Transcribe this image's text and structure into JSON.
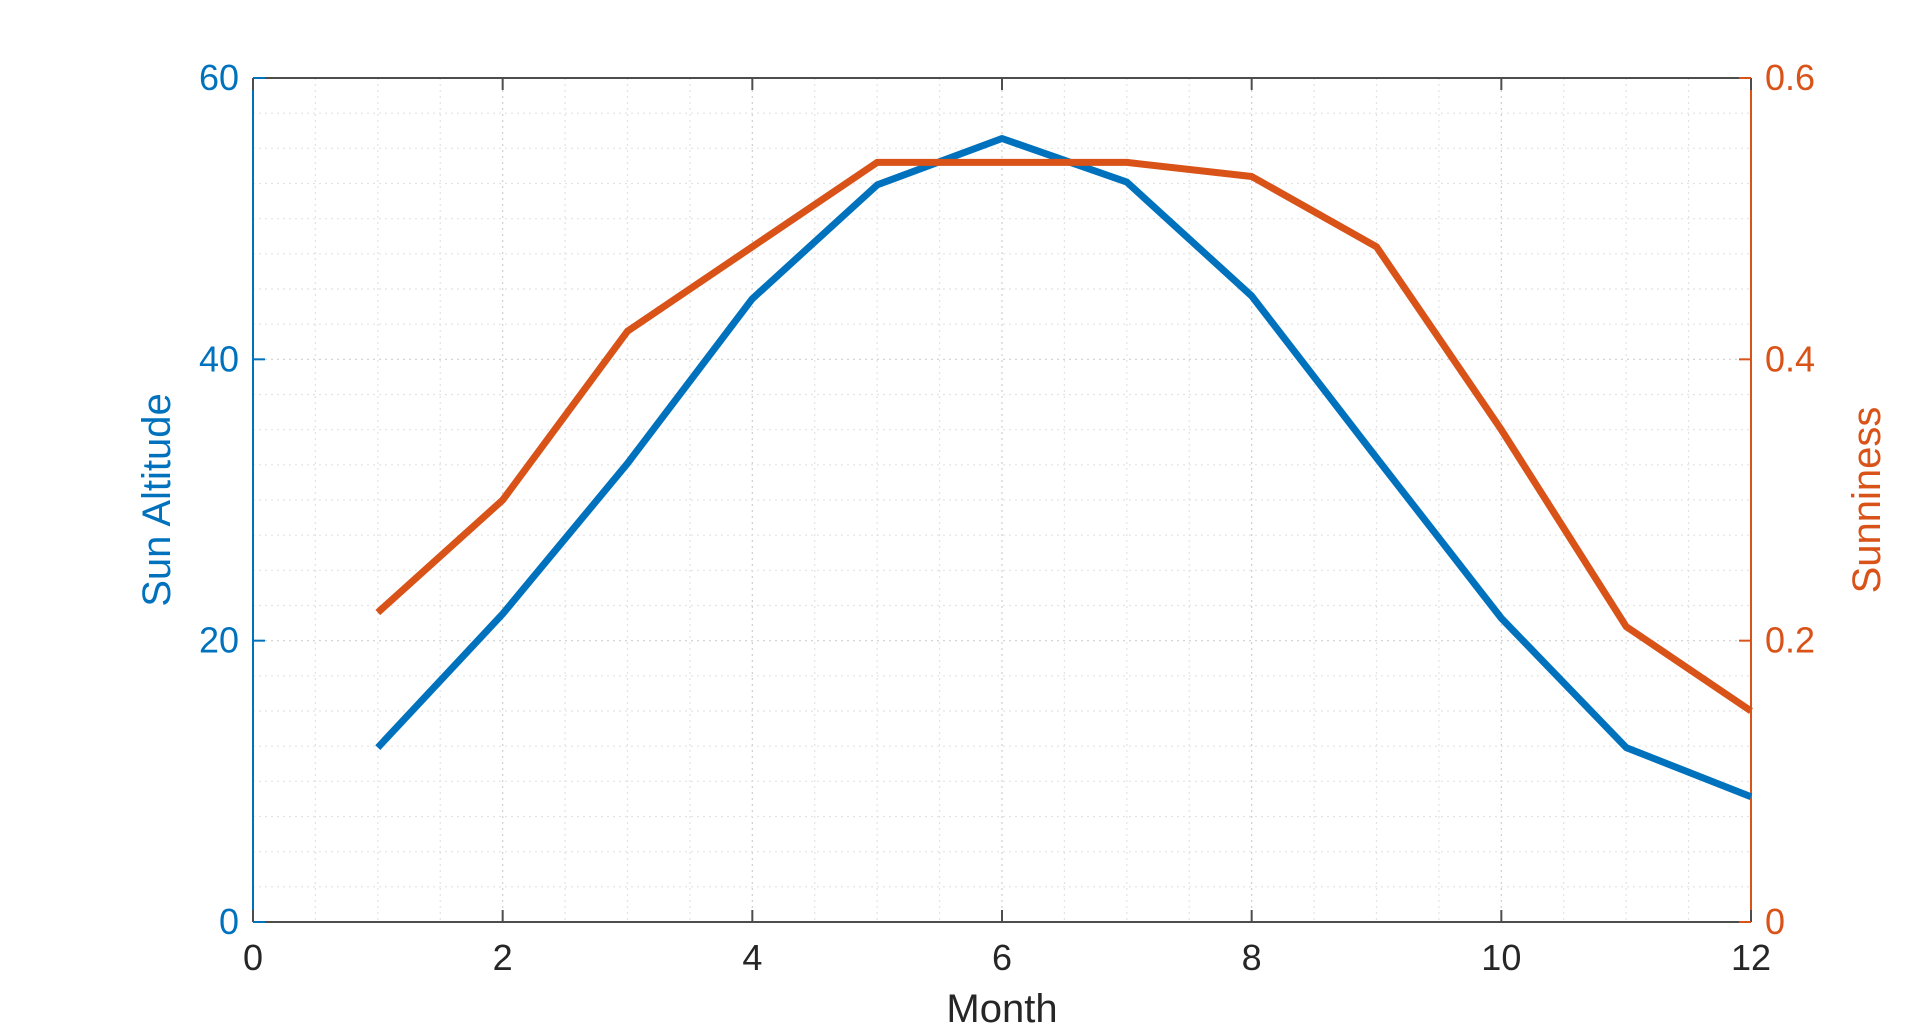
{
  "chart_data": {
    "type": "line",
    "xlabel": "Month",
    "xlim": [
      0,
      12
    ],
    "xticks": [
      0,
      2,
      4,
      6,
      8,
      10,
      12
    ],
    "grid": "on (major and minor, dotted)",
    "yaxes": {
      "left": {
        "label": "Sun Altitude",
        "lim": [
          0,
          60
        ],
        "ticks": [
          0,
          20,
          40,
          60
        ],
        "color": "#0072BD"
      },
      "right": {
        "label": "Sunniness",
        "lim": [
          0,
          0.6
        ],
        "ticks": [
          0,
          0.2,
          0.4,
          0.6
        ],
        "color": "#D95319"
      }
    },
    "series": [
      {
        "axis": "left",
        "color": "#0072BD",
        "x": [
          1,
          2,
          3,
          4,
          5,
          6,
          7,
          8,
          9,
          10,
          11,
          12
        ],
        "values": [
          12.4,
          21.9,
          32.6,
          44.3,
          52.4,
          55.7,
          52.6,
          44.5,
          33.0,
          21.6,
          12.4,
          8.9
        ]
      },
      {
        "axis": "right",
        "color": "#D95319",
        "x": [
          1,
          2,
          3,
          4,
          5,
          6,
          7,
          8,
          9,
          10,
          11,
          12
        ],
        "values": [
          0.22,
          0.3,
          0.42,
          0.48,
          0.54,
          0.54,
          0.54,
          0.53,
          0.48,
          0.35,
          0.21,
          0.15
        ]
      }
    ]
  }
}
